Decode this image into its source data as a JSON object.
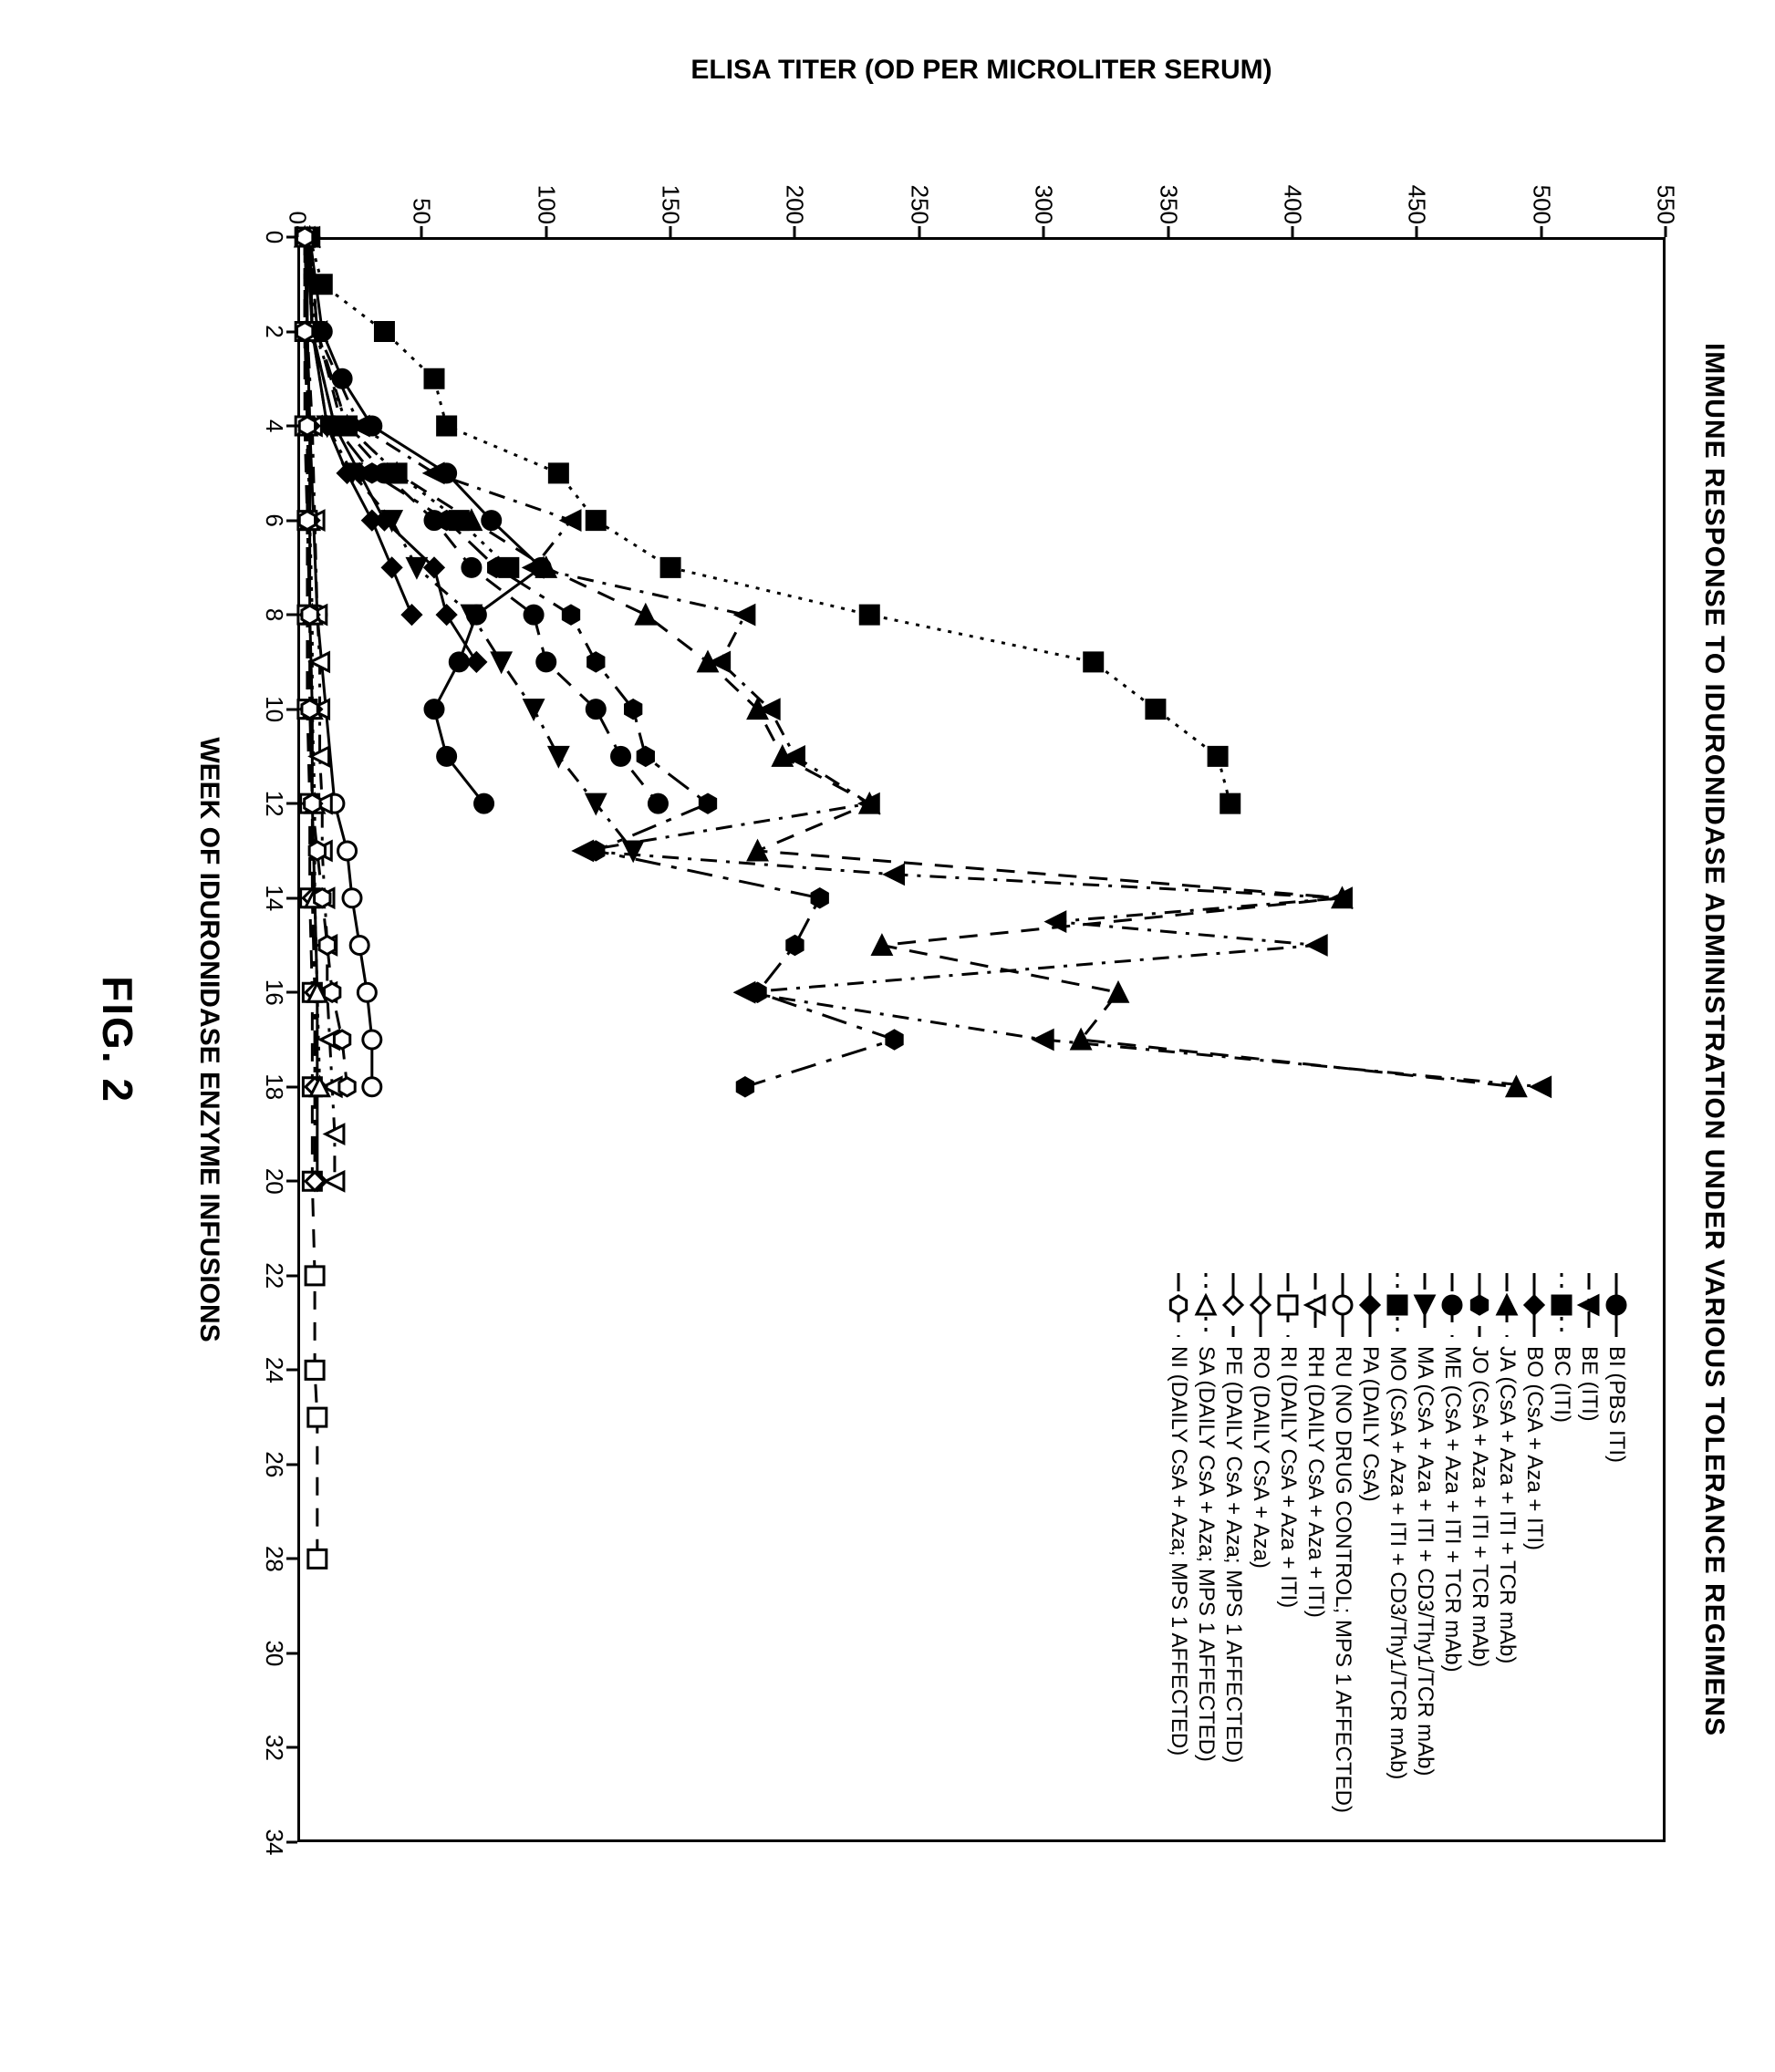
{
  "figure": {
    "caption": "FIG. 2",
    "caption_fontsize": 46
  },
  "chart": {
    "type": "line",
    "title": "IMMUNE RESPONSE TO IDURONIDASE ADMINISTRATION UNDER VARIOUS TOLERANCE REGIMENS",
    "title_fontsize": 30,
    "xlabel": "WEEK OF IDURONIDASE ENZYME INFUSIONS",
    "ylabel": "ELISA TITER (OD PER MICROLITER SERUM)",
    "label_fontsize": 30,
    "tick_fontsize": 26,
    "legend_fontsize": 24,
    "background_color": "#ffffff",
    "axis_color": "#000000",
    "line_width": 3,
    "marker_size": 10,
    "xlim": [
      0,
      34
    ],
    "ylim": [
      0,
      550
    ],
    "xtick_step": 2,
    "ytick_step": 50,
    "legend_position": "upper-right",
    "series": [
      {
        "id": "BI",
        "label": "BI (PBS ITI)",
        "marker": "circle",
        "filled": true,
        "dash": "solid",
        "points": [
          [
            0,
            5
          ],
          [
            2,
            10
          ],
          [
            3,
            18
          ],
          [
            4,
            30
          ],
          [
            5,
            60
          ],
          [
            6,
            78
          ],
          [
            7,
            98
          ],
          [
            8,
            72
          ],
          [
            9,
            65
          ],
          [
            10,
            55
          ],
          [
            11,
            60
          ],
          [
            12,
            75
          ]
        ]
      },
      {
        "id": "BE",
        "label": "BE (ITI)",
        "marker": "triangle-down",
        "filled": true,
        "dash": "dashdot",
        "points": [
          [
            0,
            5
          ],
          [
            2,
            8
          ],
          [
            4,
            25
          ],
          [
            5,
            55
          ],
          [
            6,
            110
          ],
          [
            7,
            95
          ],
          [
            8,
            180
          ],
          [
            9,
            170
          ],
          [
            10,
            190
          ],
          [
            11,
            200
          ],
          [
            12,
            230
          ],
          [
            13,
            115
          ],
          [
            13.5,
            240
          ],
          [
            14,
            420
          ],
          [
            14.5,
            305
          ],
          [
            15,
            410
          ],
          [
            16,
            180
          ],
          [
            17,
            300
          ],
          [
            18,
            500
          ]
        ]
      },
      {
        "id": "BC",
        "label": "BC (ITI)",
        "marker": "square",
        "filled": true,
        "dash": "dot",
        "points": [
          [
            0,
            5
          ],
          [
            1,
            10
          ],
          [
            2,
            35
          ],
          [
            3,
            55
          ],
          [
            4,
            60
          ],
          [
            5,
            105
          ],
          [
            6,
            120
          ],
          [
            7,
            150
          ],
          [
            8,
            230
          ],
          [
            9,
            320
          ],
          [
            10,
            345
          ],
          [
            11,
            370
          ],
          [
            12,
            375
          ]
        ]
      },
      {
        "id": "BO",
        "label": "BO (CsA + Aza + ITI)",
        "marker": "diamond",
        "filled": true,
        "dash": "solid",
        "points": [
          [
            0,
            5
          ],
          [
            2,
            6
          ],
          [
            4,
            15
          ],
          [
            5,
            25
          ],
          [
            6,
            35
          ],
          [
            7,
            55
          ],
          [
            8,
            60
          ],
          [
            9,
            72
          ]
        ]
      },
      {
        "id": "JA",
        "label": "JA (CsA + Aza + ITI + TCR mAb)",
        "marker": "triangle-left",
        "filled": true,
        "dash": "longdash",
        "points": [
          [
            0,
            5
          ],
          [
            2,
            8
          ],
          [
            4,
            20
          ],
          [
            5,
            40
          ],
          [
            6,
            70
          ],
          [
            7,
            100
          ],
          [
            8,
            140
          ],
          [
            9,
            165
          ],
          [
            10,
            185
          ],
          [
            11,
            195
          ],
          [
            12,
            230
          ],
          [
            13,
            185
          ],
          [
            14,
            420
          ],
          [
            15,
            235
          ],
          [
            16,
            330
          ],
          [
            17,
            315
          ],
          [
            18,
            490
          ]
        ]
      },
      {
        "id": "JO",
        "label": "JO (CsA + Aza + ITI + TCR mAb)",
        "marker": "hexagon",
        "filled": true,
        "dash": "longdashdot",
        "points": [
          [
            0,
            5
          ],
          [
            2,
            6
          ],
          [
            4,
            15
          ],
          [
            5,
            30
          ],
          [
            6,
            60
          ],
          [
            7,
            80
          ],
          [
            8,
            110
          ],
          [
            9,
            120
          ],
          [
            10,
            135
          ],
          [
            11,
            140
          ],
          [
            12,
            165
          ],
          [
            13,
            120
          ],
          [
            14,
            210
          ],
          [
            15,
            200
          ],
          [
            16,
            185
          ],
          [
            17,
            240
          ],
          [
            18,
            180
          ]
        ]
      },
      {
        "id": "ME",
        "label": "ME (CsA + Aza + ITI + TCR mAb)",
        "marker": "circle",
        "filled": true,
        "dash": "longdash",
        "points": [
          [
            0,
            5
          ],
          [
            2,
            8
          ],
          [
            4,
            18
          ],
          [
            5,
            35
          ],
          [
            6,
            55
          ],
          [
            7,
            70
          ],
          [
            8,
            95
          ],
          [
            9,
            100
          ],
          [
            10,
            120
          ],
          [
            11,
            130
          ],
          [
            12,
            145
          ]
        ]
      },
      {
        "id": "MA",
        "label": "MA (CsA + Aza + ITI + CD3/Thy1/TCR mAb)",
        "marker": "triangle-right",
        "filled": true,
        "dash": "dashdot",
        "points": [
          [
            0,
            4
          ],
          [
            2,
            6
          ],
          [
            4,
            12
          ],
          [
            5,
            22
          ],
          [
            6,
            38
          ],
          [
            7,
            48
          ],
          [
            8,
            70
          ],
          [
            9,
            82
          ],
          [
            10,
            95
          ],
          [
            11,
            105
          ],
          [
            12,
            120
          ],
          [
            13,
            135
          ]
        ]
      },
      {
        "id": "MO",
        "label": "MO (CsA + Aza + ITI + CD3/Thy1/TCR mAb)",
        "marker": "square",
        "filled": true,
        "dash": "dot",
        "points": [
          [
            0,
            4
          ],
          [
            2,
            7
          ],
          [
            4,
            20
          ],
          [
            5,
            40
          ],
          [
            6,
            65
          ],
          [
            7,
            85
          ]
        ]
      },
      {
        "id": "PA",
        "label": "PA (DAILY CsA)",
        "marker": "diamond",
        "filled": true,
        "dash": "solid",
        "points": [
          [
            0,
            4
          ],
          [
            2,
            6
          ],
          [
            4,
            12
          ],
          [
            5,
            20
          ],
          [
            6,
            30
          ],
          [
            7,
            38
          ],
          [
            8,
            46
          ]
        ]
      },
      {
        "id": "RU",
        "label": "RU (NO DRUG CONTROL; MPS 1 AFFECTED)",
        "marker": "circle",
        "filled": false,
        "dash": "solid",
        "points": [
          [
            0,
            3
          ],
          [
            4,
            5
          ],
          [
            8,
            8
          ],
          [
            12,
            15
          ],
          [
            13,
            20
          ],
          [
            14,
            22
          ],
          [
            15,
            25
          ],
          [
            16,
            28
          ],
          [
            17,
            30
          ],
          [
            18,
            30
          ]
        ]
      },
      {
        "id": "RH",
        "label": "RH (DAILY CsA + Aza + ITI)",
        "marker": "triangle-down",
        "filled": false,
        "dash": "dashdot",
        "points": [
          [
            0,
            3
          ],
          [
            2,
            4
          ],
          [
            4,
            6
          ],
          [
            6,
            7
          ],
          [
            8,
            8
          ],
          [
            9,
            9
          ],
          [
            10,
            9
          ],
          [
            11,
            9
          ],
          [
            12,
            10
          ],
          [
            13,
            10
          ],
          [
            14,
            11
          ],
          [
            15,
            12
          ],
          [
            16,
            12
          ],
          [
            17,
            13
          ],
          [
            18,
            14
          ],
          [
            19,
            15
          ],
          [
            20,
            15
          ]
        ]
      },
      {
        "id": "RI",
        "label": "RI (DAILY CsA + Aza + ITI)",
        "marker": "square",
        "filled": false,
        "dash": "longdash",
        "points": [
          [
            0,
            3
          ],
          [
            2,
            3
          ],
          [
            4,
            3
          ],
          [
            6,
            4
          ],
          [
            8,
            4
          ],
          [
            10,
            4
          ],
          [
            12,
            5
          ],
          [
            14,
            5
          ],
          [
            16,
            6
          ],
          [
            18,
            6
          ],
          [
            20,
            6
          ],
          [
            22,
            7
          ],
          [
            24,
            7
          ],
          [
            25,
            8
          ],
          [
            28,
            8
          ]
        ]
      },
      {
        "id": "RO",
        "label": "RO (DAILY CsA + Aza)",
        "marker": "diamond",
        "filled": false,
        "dash": "solid",
        "points": [
          [
            0,
            4
          ],
          [
            2,
            4
          ],
          [
            4,
            5
          ],
          [
            6,
            5
          ],
          [
            8,
            5
          ],
          [
            10,
            6
          ],
          [
            12,
            6
          ],
          [
            14,
            7
          ],
          [
            16,
            8
          ],
          [
            18,
            8
          ],
          [
            20,
            8
          ]
        ]
      },
      {
        "id": "PE",
        "label": "PE (DAILY CsA + Aza; MPS 1 AFFECTED)",
        "marker": "diamond",
        "filled": false,
        "dash": "longdashdot",
        "points": [
          [
            0,
            3
          ],
          [
            2,
            3
          ],
          [
            4,
            4
          ],
          [
            6,
            4
          ],
          [
            8,
            5
          ],
          [
            10,
            5
          ],
          [
            12,
            6
          ],
          [
            14,
            6
          ],
          [
            16,
            7
          ],
          [
            18,
            7
          ],
          [
            20,
            7
          ]
        ]
      },
      {
        "id": "SA",
        "label": "SA (DAILY CsA + Aza; MPS 1 AFFECTED)",
        "marker": "triangle-left",
        "filled": false,
        "dash": "dot",
        "points": [
          [
            0,
            3
          ],
          [
            2,
            4
          ],
          [
            4,
            4
          ],
          [
            6,
            5
          ],
          [
            8,
            6
          ],
          [
            10,
            6
          ],
          [
            12,
            7
          ],
          [
            14,
            7
          ],
          [
            16,
            8
          ],
          [
            18,
            9
          ]
        ]
      },
      {
        "id": "NI",
        "label": "NI (DAILY CsA + Aza; MPS 1 AFFECTED)",
        "marker": "hexagon",
        "filled": false,
        "dash": "longdash",
        "points": [
          [
            0,
            3
          ],
          [
            2,
            3
          ],
          [
            4,
            4
          ],
          [
            6,
            4
          ],
          [
            8,
            5
          ],
          [
            10,
            5
          ],
          [
            12,
            6
          ],
          [
            13,
            8
          ],
          [
            14,
            10
          ],
          [
            15,
            12
          ],
          [
            16,
            14
          ],
          [
            17,
            18
          ],
          [
            18,
            20
          ]
        ]
      }
    ]
  }
}
